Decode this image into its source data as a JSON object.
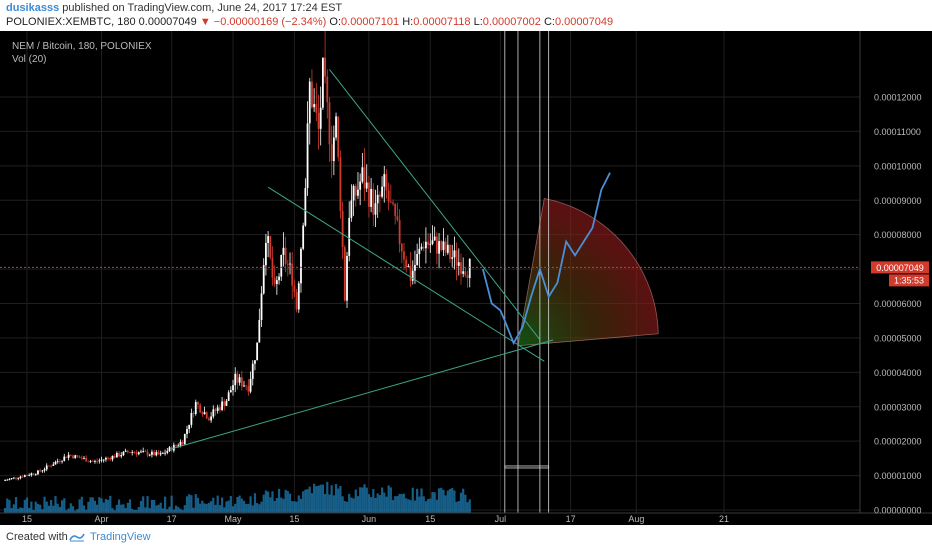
{
  "header": {
    "author": "dusikasss",
    "published": "published on TradingView.com, June 24, 2017 17:24 EST",
    "symbol_line": "POLONIEX:XEMBTC, 180  0.00007049",
    "change": "▼ −0.00000169 (−2.34%)",
    "ohlc": {
      "o_label": "O:",
      "o": "0.00007101",
      "h_label": "H:",
      "h": "0.00007118",
      "l_label": "L:",
      "l": "0.00007002",
      "c_label": "C:",
      "c": "0.00007049"
    }
  },
  "footer": {
    "created": "Created with",
    "brand": "TradingView"
  },
  "chart_data": {
    "type": "candlestick",
    "title": "NEM / Bitcoin, 180, POLONIEX",
    "volume_label": "Vol (20)",
    "yticks": [
      "0.00012000",
      "0.00011000",
      "0.00010000",
      "0.00009000",
      "0.00008000",
      "0.00007000",
      "0.00006000",
      "0.00005000",
      "0.00004000",
      "0.00003000",
      "0.00002000",
      "0.00001000",
      "0.00000000"
    ],
    "ytick_values": [
      0.00012,
      0.00011,
      0.0001,
      9e-05,
      8e-05,
      7e-05,
      6e-05,
      5e-05,
      4e-05,
      3e-05,
      2e-05,
      1e-05,
      0
    ],
    "xticks": [
      {
        "label": "15",
        "date": "2017-03-15"
      },
      {
        "label": "Apr",
        "date": "2017-04-01"
      },
      {
        "label": "17",
        "date": "2017-04-17"
      },
      {
        "label": "May",
        "date": "2017-05-01"
      },
      {
        "label": "15",
        "date": "2017-05-15"
      },
      {
        "label": "Jun",
        "date": "2017-06-01"
      },
      {
        "label": "15",
        "date": "2017-06-15"
      },
      {
        "label": "Jul",
        "date": "2017-07-01"
      },
      {
        "label": "17",
        "date": "2017-07-17"
      },
      {
        "label": "Aug",
        "date": "2017-08-01"
      },
      {
        "label": "21",
        "date": "2017-08-21"
      }
    ],
    "last_price": "0.00007049",
    "last_price_value": 7.049e-05,
    "countdown": "1:35:53",
    "price_path": [
      {
        "date": "2017-03-10",
        "value": 8.5e-06
      },
      {
        "date": "2017-03-18",
        "value": 1.1e-05
      },
      {
        "date": "2017-03-25",
        "value": 1.6e-05
      },
      {
        "date": "2017-03-31",
        "value": 1.4e-05
      },
      {
        "date": "2017-04-08",
        "value": 1.7e-05
      },
      {
        "date": "2017-04-15",
        "value": 1.6e-05
      },
      {
        "date": "2017-04-20",
        "value": 2e-05
      },
      {
        "date": "2017-04-23",
        "value": 3.1e-05
      },
      {
        "date": "2017-04-26",
        "value": 2.7e-05
      },
      {
        "date": "2017-04-30",
        "value": 3.2e-05
      },
      {
        "date": "2017-05-02",
        "value": 3.8e-05
      },
      {
        "date": "2017-05-05",
        "value": 3.6e-05
      },
      {
        "date": "2017-05-07",
        "value": 4.8e-05
      },
      {
        "date": "2017-05-09",
        "value": 8.1e-05
      },
      {
        "date": "2017-05-11",
        "value": 6.3e-05
      },
      {
        "date": "2017-05-13",
        "value": 7.4e-05
      },
      {
        "date": "2017-05-15",
        "value": 6.8e-05
      },
      {
        "date": "2017-05-16",
        "value": 5.9e-05
      },
      {
        "date": "2017-05-18",
        "value": 9.5e-05
      },
      {
        "date": "2017-05-19",
        "value": 0.000123
      },
      {
        "date": "2017-05-21",
        "value": 0.00011
      },
      {
        "date": "2017-05-22",
        "value": 0.000126
      },
      {
        "date": "2017-05-24",
        "value": 0.000105
      },
      {
        "date": "2017-05-25",
        "value": 0.000112
      },
      {
        "date": "2017-05-26",
        "value": 9e-05
      },
      {
        "date": "2017-05-27",
        "value": 6.2e-05
      },
      {
        "date": "2017-05-28",
        "value": 8.7e-05
      },
      {
        "date": "2017-05-31",
        "value": 9.7e-05
      },
      {
        "date": "2017-06-03",
        "value": 8.7e-05
      },
      {
        "date": "2017-06-05",
        "value": 9.4e-05
      },
      {
        "date": "2017-06-08",
        "value": 8.1e-05
      },
      {
        "date": "2017-06-11",
        "value": 6.8e-05
      },
      {
        "date": "2017-06-14",
        "value": 7.8e-05
      },
      {
        "date": "2017-06-17",
        "value": 7.7e-05
      },
      {
        "date": "2017-06-20",
        "value": 7.4e-05
      },
      {
        "date": "2017-06-24",
        "value": 7.05e-05
      }
    ],
    "projection": [
      {
        "date": "2017-06-27",
        "value": 7e-05
      },
      {
        "date": "2017-06-28",
        "value": 6.5e-05
      },
      {
        "date": "2017-06-29",
        "value": 6e-05
      },
      {
        "date": "2017-07-01",
        "value": 5.8e-05
      },
      {
        "date": "2017-07-02",
        "value": 5.5e-05
      },
      {
        "date": "2017-07-04",
        "value": 4.85e-05
      },
      {
        "date": "2017-07-06",
        "value": 5.3e-05
      },
      {
        "date": "2017-07-08",
        "value": 6.2e-05
      },
      {
        "date": "2017-07-10",
        "value": 7e-05
      },
      {
        "date": "2017-07-12",
        "value": 6.2e-05
      },
      {
        "date": "2017-07-14",
        "value": 6.6e-05
      },
      {
        "date": "2017-07-16",
        "value": 7.8e-05
      },
      {
        "date": "2017-07-18",
        "value": 7.4e-05
      },
      {
        "date": "2017-07-20",
        "value": 7.8e-05
      },
      {
        "date": "2017-07-22",
        "value": 8.2e-05
      },
      {
        "date": "2017-07-24",
        "value": 9.3e-05
      },
      {
        "date": "2017-07-26",
        "value": 9.8e-05
      }
    ],
    "trendlines": [
      {
        "from": {
          "date": "2017-04-17",
          "value": 1.78e-05
        },
        "to": {
          "date": "2017-07-13",
          "value": 4.94e-05
        }
      },
      {
        "from": {
          "date": "2017-05-09",
          "value": 9.38e-05
        },
        "to": {
          "date": "2017-07-11",
          "value": 4.32e-05
        }
      },
      {
        "from": {
          "date": "2017-05-23",
          "value": 0.000128
        },
        "to": {
          "date": "2017-07-10",
          "value": 4.95e-05
        }
      }
    ],
    "vertical_lines": [
      "2017-07-02",
      "2017-07-05",
      "2017-07-10",
      "2017-07-12"
    ],
    "box": {
      "date_from": "2017-07-02",
      "date_to": "2017-07-12",
      "value": 1.25e-05
    },
    "pie_zone": {
      "center": {
        "date": "2017-07-05",
        "value": 4.77e-05
      },
      "edge_a": {
        "date": "2017-07-11",
        "value": 9.05e-05
      },
      "edge_b": {
        "date": "2017-08-06",
        "value": 5.12e-05
      }
    },
    "colors": {
      "background": "#000000",
      "up": "#ffffff",
      "down": "#d23a2c",
      "grid": "#1f1f1f",
      "axis_text": "#bbbbbb",
      "trendline": "#3fa58a",
      "projection": "#4a8fd8",
      "last_price": "#d23a2c",
      "zone": "#8b1a1a",
      "volume": "#1a6fa0"
    }
  }
}
